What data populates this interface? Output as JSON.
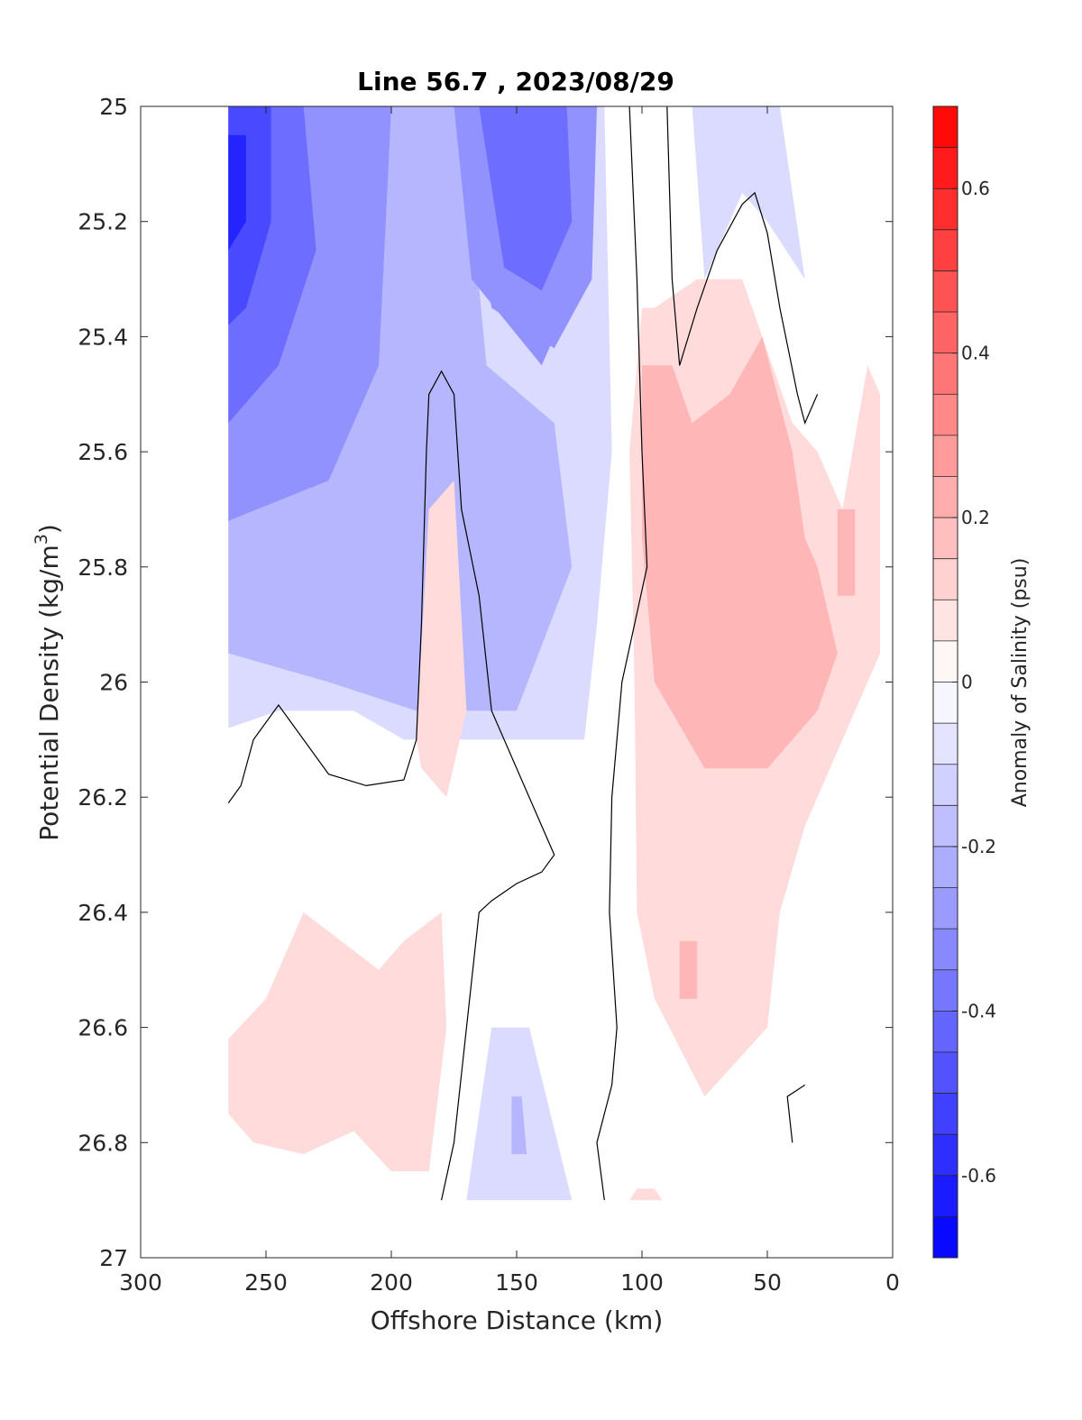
{
  "chart_data": {
    "type": "contour",
    "title": "Line 56.7 , 2023/08/29",
    "xlabel": "Offshore Distance (km)",
    "ylabel_main": "Potential Density (kg/m",
    "ylabel_sup": "3",
    "ylabel_close": ")",
    "colorbar_label": "Anomaly of Salinity (psu)",
    "xlim": [
      300,
      0
    ],
    "ylim": [
      25,
      27
    ],
    "x_ticks": [
      "300",
      "250",
      "200",
      "150",
      "100",
      "50",
      "0"
    ],
    "x_tick_values": [
      300,
      250,
      200,
      150,
      100,
      50,
      0
    ],
    "y_ticks": [
      "25",
      "25.2",
      "25.4",
      "25.6",
      "25.8",
      "26",
      "26.2",
      "26.4",
      "26.6",
      "26.8",
      "27"
    ],
    "y_tick_values": [
      25,
      25.2,
      25.4,
      25.6,
      25.8,
      26,
      26.2,
      26.4,
      26.6,
      26.8,
      27
    ],
    "colorbar_range": [
      -0.7,
      0.7
    ],
    "colorbar_ticks": [
      "-0.6",
      "-0.4",
      "-0.2",
      "0",
      "0.2",
      "0.4",
      "0.6"
    ],
    "colorbar_tick_values": [
      -0.6,
      -0.4,
      -0.2,
      0,
      0.2,
      0.4,
      0.6
    ],
    "colors": {
      "negative": "#0000ff",
      "zero": "#ffffff",
      "positive": "#ff0000"
    },
    "regions": [
      {
        "anomaly": -0.1,
        "points": [
          [
            265,
            25
          ],
          [
            115,
            25
          ],
          [
            112,
            25.6
          ],
          [
            118,
            25.9
          ],
          [
            123,
            26.1
          ],
          [
            170,
            26.1
          ],
          [
            195,
            26.1
          ],
          [
            215,
            26.05
          ],
          [
            245,
            26.05
          ],
          [
            265,
            26.08
          ]
        ]
      },
      {
        "anomaly": -0.2,
        "points": [
          [
            265,
            25
          ],
          [
            172,
            25
          ],
          [
            162,
            25.45
          ],
          [
            135,
            25.55
          ],
          [
            128,
            25.8
          ],
          [
            150,
            26.05
          ],
          [
            190,
            26.05
          ],
          [
            225,
            26.0
          ],
          [
            265,
            25.95
          ]
        ]
      },
      {
        "anomaly": -0.3,
        "points": [
          [
            265,
            25
          ],
          [
            175,
            25
          ],
          [
            168,
            25.3
          ],
          [
            140,
            25.45
          ],
          [
            130,
            25.35
          ],
          [
            140,
            25.1
          ],
          [
            120,
            25.0
          ],
          [
            200,
            25.0
          ],
          [
            205,
            25.45
          ],
          [
            225,
            25.65
          ],
          [
            265,
            25.72
          ]
        ]
      },
      {
        "anomaly": -0.3,
        "points": [
          [
            170,
            25
          ],
          [
            118,
            25
          ],
          [
            120,
            25.3
          ],
          [
            135,
            25.42
          ],
          [
            160,
            25.35
          ],
          [
            168,
            25.15
          ]
        ]
      },
      {
        "anomaly": -0.4,
        "points": [
          [
            265,
            25
          ],
          [
            235,
            25
          ],
          [
            230,
            25.25
          ],
          [
            245,
            25.45
          ],
          [
            265,
            25.55
          ]
        ]
      },
      {
        "anomaly": -0.4,
        "points": [
          [
            165,
            25
          ],
          [
            130,
            25
          ],
          [
            128,
            25.2
          ],
          [
            140,
            25.32
          ],
          [
            155,
            25.28
          ]
        ]
      },
      {
        "anomaly": -0.5,
        "points": [
          [
            265,
            25
          ],
          [
            248,
            25
          ],
          [
            248,
            25.2
          ],
          [
            258,
            25.35
          ],
          [
            265,
            25.38
          ]
        ]
      },
      {
        "anomaly": -0.6,
        "points": [
          [
            265,
            25.05
          ],
          [
            258,
            25.05
          ],
          [
            258,
            25.2
          ],
          [
            265,
            25.25
          ]
        ]
      },
      {
        "anomaly": -0.1,
        "points": [
          [
            160,
            26.6
          ],
          [
            145,
            26.6
          ],
          [
            128,
            26.9
          ],
          [
            170,
            26.9
          ]
        ]
      },
      {
        "anomaly": -0.2,
        "points": [
          [
            152,
            26.72
          ],
          [
            148,
            26.72
          ],
          [
            146,
            26.82
          ],
          [
            152,
            26.82
          ]
        ]
      },
      {
        "anomaly": -0.1,
        "points": [
          [
            80,
            25
          ],
          [
            45,
            25
          ],
          [
            40,
            25.15
          ],
          [
            35,
            25.3
          ],
          [
            50,
            25.2
          ],
          [
            60,
            25.15
          ],
          [
            75,
            25.3
          ]
        ]
      },
      {
        "anomaly": 0.1,
        "points": [
          [
            100,
            25.35
          ],
          [
            95,
            25.35
          ],
          [
            78,
            25.3
          ],
          [
            60,
            25.3
          ],
          [
            40,
            25.55
          ],
          [
            30,
            25.6
          ],
          [
            20,
            25.7
          ],
          [
            10,
            25.45
          ],
          [
            5,
            25.5
          ],
          [
            5,
            25.95
          ],
          [
            15,
            26.05
          ],
          [
            35,
            26.25
          ],
          [
            45,
            26.4
          ],
          [
            50,
            26.6
          ],
          [
            75,
            26.72
          ],
          [
            95,
            26.55
          ],
          [
            102,
            26.4
          ],
          [
            103,
            26.0
          ],
          [
            105,
            25.6
          ]
        ]
      },
      {
        "anomaly": 0.2,
        "points": [
          [
            100,
            25.45
          ],
          [
            88,
            25.45
          ],
          [
            80,
            25.55
          ],
          [
            65,
            25.5
          ],
          [
            52,
            25.4
          ],
          [
            40,
            25.6
          ],
          [
            35,
            25.75
          ],
          [
            30,
            25.8
          ],
          [
            22,
            25.95
          ],
          [
            30,
            26.05
          ],
          [
            50,
            26.15
          ],
          [
            75,
            26.15
          ],
          [
            95,
            26.0
          ],
          [
            100,
            25.75
          ]
        ]
      },
      {
        "anomaly": 0.2,
        "points": [
          [
            85,
            26.45
          ],
          [
            78,
            26.45
          ],
          [
            78,
            26.55
          ],
          [
            85,
            26.55
          ]
        ]
      },
      {
        "anomaly": 0.2,
        "points": [
          [
            22,
            25.7
          ],
          [
            15,
            25.7
          ],
          [
            15,
            25.85
          ],
          [
            22,
            25.85
          ]
        ]
      },
      {
        "anomaly": 0.1,
        "points": [
          [
            175,
            25.65
          ],
          [
            185,
            25.7
          ],
          [
            190,
            26.1
          ],
          [
            188,
            26.15
          ],
          [
            178,
            26.2
          ],
          [
            170,
            26.05
          ]
        ]
      },
      {
        "anomaly": 0.1,
        "points": [
          [
            265,
            26.62
          ],
          [
            250,
            26.55
          ],
          [
            235,
            26.4
          ],
          [
            220,
            26.45
          ],
          [
            205,
            26.5
          ],
          [
            195,
            26.45
          ],
          [
            180,
            26.4
          ],
          [
            178,
            26.6
          ],
          [
            185,
            26.85
          ],
          [
            200,
            26.85
          ],
          [
            215,
            26.78
          ],
          [
            235,
            26.82
          ],
          [
            255,
            26.8
          ],
          [
            265,
            26.75
          ]
        ]
      },
      {
        "anomaly": 0.1,
        "points": [
          [
            105,
            26.9
          ],
          [
            92,
            26.9
          ],
          [
            95,
            26.88
          ],
          [
            102,
            26.88
          ]
        ]
      }
    ],
    "zero_contours": [
      [
        [
          265,
          26.21
        ],
        [
          260,
          26.18
        ],
        [
          255,
          26.1
        ],
        [
          245,
          26.04
        ],
        [
          235,
          26.1
        ],
        [
          225,
          26.16
        ],
        [
          210,
          26.18
        ],
        [
          195,
          26.17
        ],
        [
          190,
          26.1
        ],
        [
          188,
          25.9
        ],
        [
          186,
          25.6
        ],
        [
          185,
          25.5
        ],
        [
          180,
          25.46
        ],
        [
          175,
          25.5
        ],
        [
          172,
          25.7
        ],
        [
          165,
          25.85
        ],
        [
          160,
          26.05
        ],
        [
          150,
          26.15
        ],
        [
          140,
          26.25
        ],
        [
          135,
          26.3
        ],
        [
          140,
          26.33
        ],
        [
          150,
          26.35
        ],
        [
          160,
          26.38
        ],
        [
          165,
          26.4
        ],
        [
          170,
          26.6
        ],
        [
          175,
          26.8
        ],
        [
          180,
          26.9
        ]
      ],
      [
        [
          105,
          25
        ],
        [
          102,
          25.3
        ],
        [
          100,
          25.6
        ],
        [
          98,
          25.8
        ],
        [
          108,
          26.0
        ],
        [
          112,
          26.2
        ],
        [
          113,
          26.4
        ],
        [
          110,
          26.6
        ],
        [
          112,
          26.7
        ],
        [
          118,
          26.8
        ],
        [
          115,
          26.9
        ]
      ],
      [
        [
          90,
          25
        ],
        [
          88,
          25.3
        ],
        [
          85,
          25.45
        ],
        [
          78,
          25.35
        ],
        [
          70,
          25.25
        ],
        [
          60,
          25.17
        ],
        [
          55,
          25.15
        ],
        [
          50,
          25.22
        ],
        [
          45,
          25.35
        ],
        [
          38,
          25.5
        ],
        [
          35,
          25.55
        ],
        [
          30,
          25.5
        ]
      ],
      [
        [
          40,
          26.8
        ],
        [
          42,
          26.72
        ],
        [
          35,
          26.7
        ]
      ]
    ]
  }
}
